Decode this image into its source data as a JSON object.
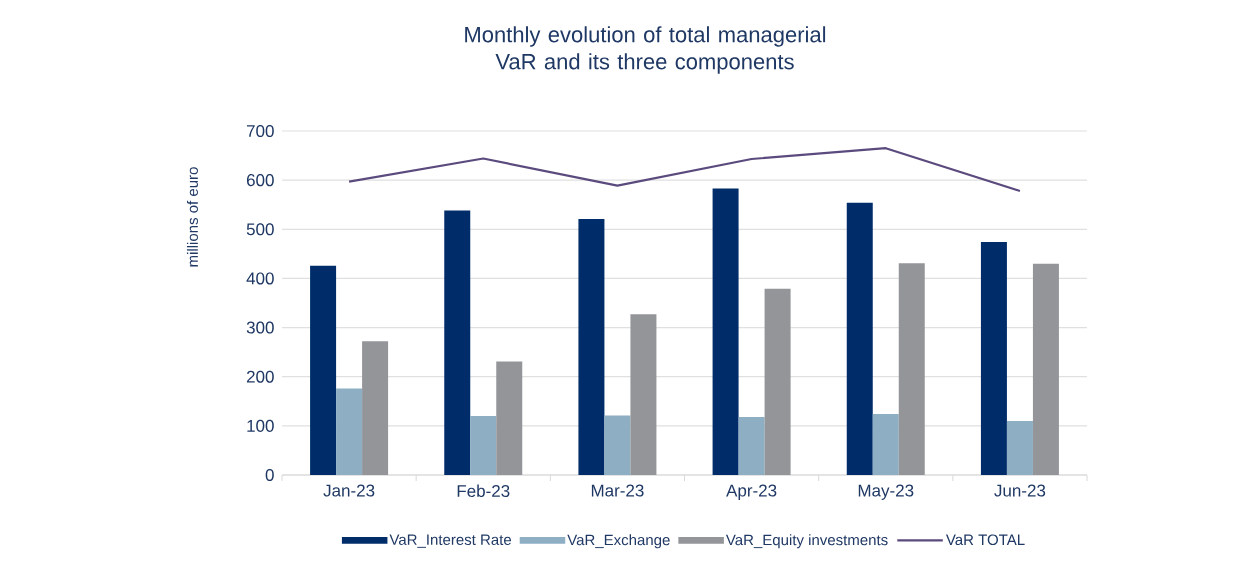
{
  "chart_data": {
    "type": "bar",
    "title": "Monthly evolution of total managerial VaR and its three components",
    "ylabel": "millions of euro",
    "categories": [
      "Jan-23",
      "Feb-23",
      "Mar-23",
      "Apr-23",
      "May-23",
      "Jun-23"
    ],
    "series": [
      {
        "name": "VaR_Interest Rate",
        "color": "#002d6a",
        "values": [
          426,
          538,
          521,
          583,
          554,
          474
        ]
      },
      {
        "name": "VaR_Exchange",
        "color": "#8eaec4",
        "values": [
          176,
          120,
          121,
          118,
          124,
          110
        ]
      },
      {
        "name": "VaR_Equity investments",
        "color": "#939598",
        "values": [
          272,
          231,
          327,
          379,
          431,
          430
        ]
      },
      {
        "name": "VaR TOTAL",
        "type": "line",
        "color": "#5b4a7d",
        "values": [
          597,
          644,
          589,
          643,
          665,
          578
        ]
      }
    ],
    "ylim": [
      0,
      700
    ],
    "yticks": [
      0,
      100,
      200,
      300,
      400,
      500,
      600,
      700
    ],
    "grid": "y",
    "legend": "bottom",
    "marker": "none"
  }
}
